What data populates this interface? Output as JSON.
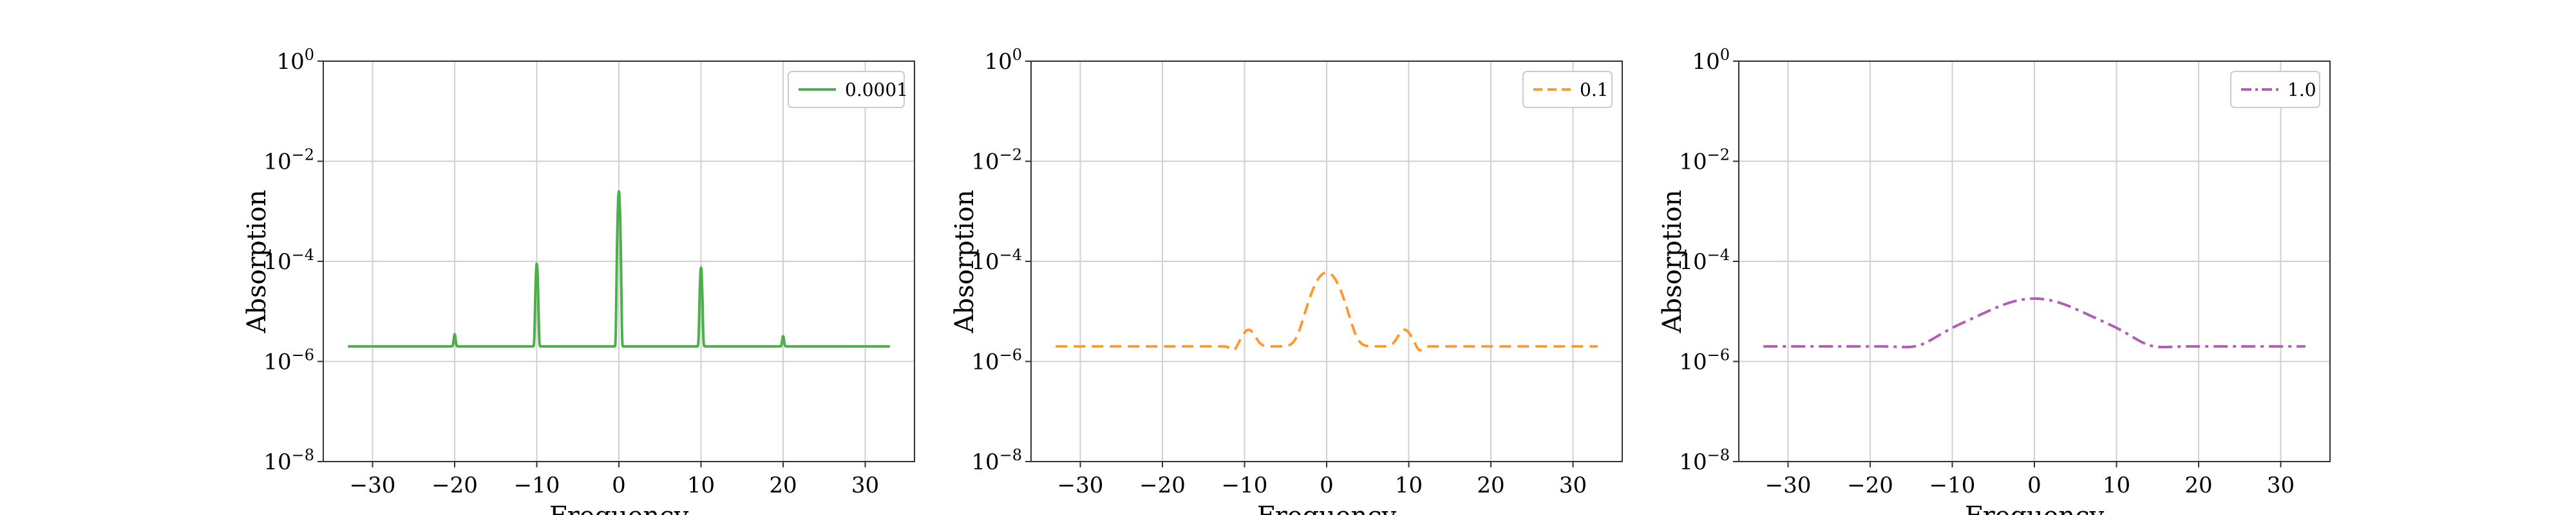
{
  "chart_data": [
    {
      "type": "line",
      "xlabel": "Frequency",
      "ylabel": "Absorption",
      "xlim": [
        -36,
        36
      ],
      "ylim": [
        1e-08,
        1
      ],
      "yscale": "log",
      "grid": true,
      "legend": "top-right",
      "xticks": [
        "−30",
        "−20",
        "−10",
        "0",
        "10",
        "20",
        "30"
      ],
      "xtick_values": [
        -30,
        -20,
        -10,
        0,
        10,
        20,
        30
      ],
      "yticks": [
        {
          "base": "10",
          "exp": "−8",
          "value": 1e-08
        },
        {
          "base": "10",
          "exp": "−6",
          "value": 1e-06
        },
        {
          "base": "10",
          "exp": "−4",
          "value": 0.0001
        },
        {
          "base": "10",
          "exp": "−2",
          "value": 0.01
        },
        {
          "base": "10",
          "exp": "0",
          "value": 1
        }
      ],
      "series": [
        {
          "name": "0.0001",
          "color": "#4daf4a",
          "dash": "solid",
          "baseline": 2e-06,
          "peaks": [
            {
              "x": -20,
              "y": 3.5e-06,
              "width": 0.1
            },
            {
              "x": -10,
              "y": 9e-05,
              "width": 0.1
            },
            {
              "x": 0,
              "y": 0.0025,
              "width": 0.1
            },
            {
              "x": 10,
              "y": 7.5e-05,
              "width": 0.1
            },
            {
              "x": 20,
              "y": 3.2e-06,
              "width": 0.1
            }
          ],
          "x_range": [
            -33,
            33
          ]
        }
      ]
    },
    {
      "type": "line",
      "xlabel": "Frequency",
      "ylabel": "Absorption",
      "xlim": [
        -36,
        36
      ],
      "ylim": [
        1e-08,
        1
      ],
      "yscale": "log",
      "grid": true,
      "legend": "top-right",
      "xticks": [
        "−30",
        "−20",
        "−10",
        "0",
        "10",
        "20",
        "30"
      ],
      "xtick_values": [
        -30,
        -20,
        -10,
        0,
        10,
        20,
        30
      ],
      "yticks": [
        {
          "base": "10",
          "exp": "−8",
          "value": 1e-08
        },
        {
          "base": "10",
          "exp": "−6",
          "value": 1e-06
        },
        {
          "base": "10",
          "exp": "−4",
          "value": 0.0001
        },
        {
          "base": "10",
          "exp": "−2",
          "value": 0.01
        },
        {
          "base": "10",
          "exp": "0",
          "value": 1
        }
      ],
      "series": [
        {
          "name": "0.1",
          "color": "#ff9a2e",
          "dash": "dashed",
          "baseline": 2e-06,
          "peaks": [
            {
              "x": 0,
              "y": 6e-05,
              "width": 1.3
            },
            {
              "x": -9.5,
              "y": 4.3e-06,
              "width": 0.7
            },
            {
              "x": 9.5,
              "y": 4.3e-06,
              "width": 0.7
            }
          ],
          "dips": [
            {
              "x": -11.3,
              "y": 1.6e-06,
              "width": 0.4
            },
            {
              "x": 11.3,
              "y": 1.6e-06,
              "width": 0.4
            }
          ],
          "x_range": [
            -33,
            33
          ]
        }
      ]
    },
    {
      "type": "line",
      "xlabel": "Frequency",
      "ylabel": "Absorption",
      "xlim": [
        -36,
        36
      ],
      "ylim": [
        1e-08,
        1
      ],
      "yscale": "log",
      "grid": true,
      "legend": "top-right",
      "xticks": [
        "−30",
        "−20",
        "−10",
        "0",
        "10",
        "20",
        "30"
      ],
      "xtick_values": [
        -30,
        -20,
        -10,
        0,
        10,
        20,
        30
      ],
      "yticks": [
        {
          "base": "10",
          "exp": "−8",
          "value": 1e-08
        },
        {
          "base": "10",
          "exp": "−6",
          "value": 1e-06
        },
        {
          "base": "10",
          "exp": "−4",
          "value": 0.0001
        },
        {
          "base": "10",
          "exp": "−2",
          "value": 0.01
        },
        {
          "base": "10",
          "exp": "0",
          "value": 1
        }
      ],
      "series": [
        {
          "name": "1.0",
          "color": "#b25cb5",
          "dash": "dashdot",
          "baseline": 2e-06,
          "peaks": [
            {
              "x": 0,
              "y": 1.8e-05,
              "width": 4.5
            },
            {
              "x": -9,
              "y": 3.5e-06,
              "width": 3.0
            },
            {
              "x": 9,
              "y": 3.5e-06,
              "width": 3.0
            }
          ],
          "dips": [
            {
              "x": -13.5,
              "y": 1.6e-06,
              "width": 2.0
            },
            {
              "x": 13.5,
              "y": 1.6e-06,
              "width": 2.0
            }
          ],
          "x_range": [
            -33,
            33
          ]
        }
      ]
    }
  ]
}
